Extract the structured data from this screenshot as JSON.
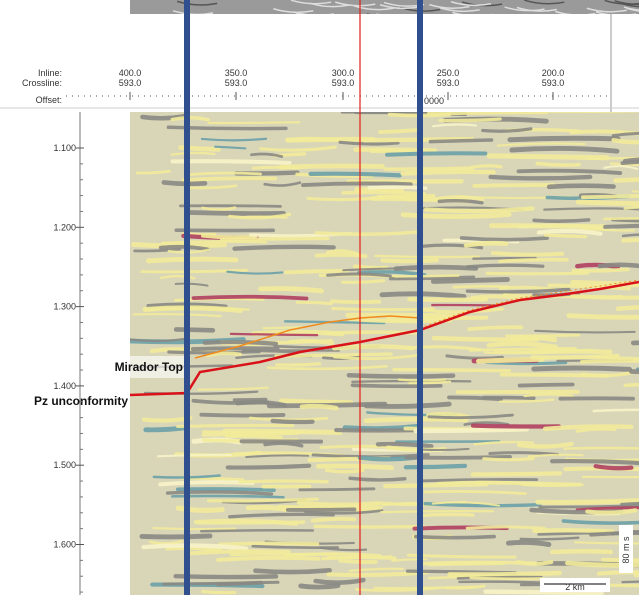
{
  "header": {
    "labels": {
      "inline": "Inline:",
      "crossline": "Crossline:",
      "offset": "Offset:"
    },
    "traces": [
      {
        "inline": "400.0",
        "crossline": "593.0"
      },
      {
        "inline": "350.0",
        "crossline": "593.0"
      },
      {
        "inline": "300.0",
        "crossline": "593.0"
      },
      {
        "inline": "250.0",
        "crossline": "593.0"
      },
      {
        "inline": "200.0",
        "crossline": "593.0"
      }
    ],
    "offset_value": "0000"
  },
  "time_axis": [
    "1.100",
    "1.200",
    "1.300",
    "1.400",
    "1.500",
    "1.600"
  ],
  "annotations": {
    "mirador": "Mirador Top",
    "pz": "Pz unconformity"
  },
  "scale_bar": {
    "horizontal": "2 km",
    "vertical": "80 m s"
  }
}
